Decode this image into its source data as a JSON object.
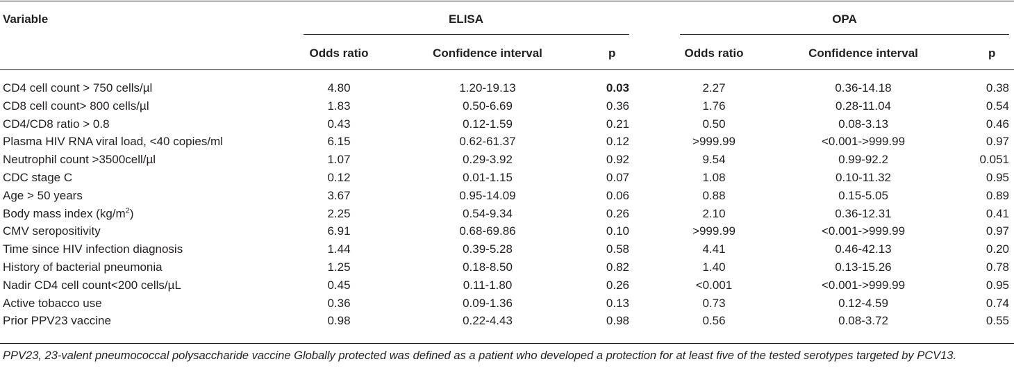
{
  "table": {
    "header": {
      "variable": "Variable",
      "group_elisa": "ELISA",
      "group_opa": "OPA",
      "elisa_cols": {
        "odds": "Odds ratio",
        "ci": "Confidence interval",
        "p": "p"
      },
      "opa_cols": {
        "odds": "Odds ratio",
        "ci": "Confidence interval",
        "p": "p"
      }
    },
    "rows": [
      {
        "variable": "CD4 cell count > 750 cells/µl",
        "elisa_or": "4.80",
        "elisa_ci": "1.20-19.13",
        "elisa_p": "0.03",
        "elisa_p_bold": true,
        "opa_or": "2.27",
        "opa_ci": "0.36-14.18",
        "opa_p": "0.38"
      },
      {
        "variable": "CD8 cell count> 800 cells/µl",
        "elisa_or": "1.83",
        "elisa_ci": "0.50-6.69",
        "elisa_p": "0.36",
        "opa_or": "1.76",
        "opa_ci": "0.28-11.04",
        "opa_p": "0.54"
      },
      {
        "variable": "CD4/CD8 ratio > 0.8",
        "elisa_or": "0.43",
        "elisa_ci": "0.12-1.59",
        "elisa_p": "0.21",
        "opa_or": "0.50",
        "opa_ci": "0.08-3.13",
        "opa_p": "0.46"
      },
      {
        "variable": "Plasma HIV RNA viral load, <40 copies/ml",
        "elisa_or": "6.15",
        "elisa_ci": "0.62-61.37",
        "elisa_p": "0.12",
        "opa_or": ">999.99",
        "opa_ci": "<0.001->999.99",
        "opa_p": "0.97"
      },
      {
        "variable": "Neutrophil count >3500cell/µl",
        "elisa_or": "1.07",
        "elisa_ci": "0.29-3.92",
        "elisa_p": "0.92",
        "opa_or": "9.54",
        "opa_ci": "0.99-92.2",
        "opa_p": "0.051"
      },
      {
        "variable": "CDC stage C",
        "elisa_or": "0.12",
        "elisa_ci": "0.01-1.15",
        "elisa_p": "0.07",
        "opa_or": "1.08",
        "opa_ci": "0.10-11.32",
        "opa_p": "0.95"
      },
      {
        "variable": "Age > 50 years",
        "elisa_or": "3.67",
        "elisa_ci": "0.95-14.09",
        "elisa_p": "0.06",
        "opa_or": "0.88",
        "opa_ci": "0.15-5.05",
        "opa_p": "0.89"
      },
      {
        "variable": "Body mass index (kg/m",
        "variable_sup": "2",
        "variable_tail": ")",
        "elisa_or": "2.25",
        "elisa_ci": "0.54-9.34",
        "elisa_p": "0.26",
        "opa_or": "2.10",
        "opa_ci": "0.36-12.31",
        "opa_p": "0.41"
      },
      {
        "variable": "CMV seropositivity",
        "elisa_or": "6.91",
        "elisa_ci": "0.68-69.86",
        "elisa_p": "0.10",
        "opa_or": ">999.99",
        "opa_ci": "<0.001->999.99",
        "opa_p": "0.97"
      },
      {
        "variable": "Time since HIV infection diagnosis",
        "elisa_or": "1.44",
        "elisa_ci": "0.39-5.28",
        "elisa_p": "0.58",
        "opa_or": "4.41",
        "opa_ci": "0.46-42.13",
        "opa_p": "0.20"
      },
      {
        "variable": "History of bacterial pneumonia",
        "elisa_or": "1.25",
        "elisa_ci": "0.18-8.50",
        "elisa_p": "0.82",
        "opa_or": "1.40",
        "opa_ci": "0.13-15.26",
        "opa_p": "0.78"
      },
      {
        "variable": "Nadir CD4 cell count<200 cells/µL",
        "elisa_or": "0.45",
        "elisa_ci": "0.11-1.80",
        "elisa_p": "0.26",
        "opa_or": "<0.001",
        "opa_ci": "<0.001->999.99",
        "opa_p": "0.95"
      },
      {
        "variable": "Active tobacco use",
        "elisa_or": "0.36",
        "elisa_ci": "0.09-1.36",
        "elisa_p": "0.13",
        "opa_or": "0.73",
        "opa_ci": "0.12-4.59",
        "opa_p": "0.74"
      },
      {
        "variable": "Prior PPV23 vaccine",
        "elisa_or": "0.98",
        "elisa_ci": "0.22-4.43",
        "elisa_p": "0.98",
        "opa_or": "0.56",
        "opa_ci": "0.08-3.72",
        "opa_p": "0.55"
      }
    ],
    "footnote": "PPV23, 23-valent pneumococcal polysaccharide vaccine Globally protected was defined as a patient who developed a protection for at least five of the tested serotypes targeted by PCV13."
  }
}
